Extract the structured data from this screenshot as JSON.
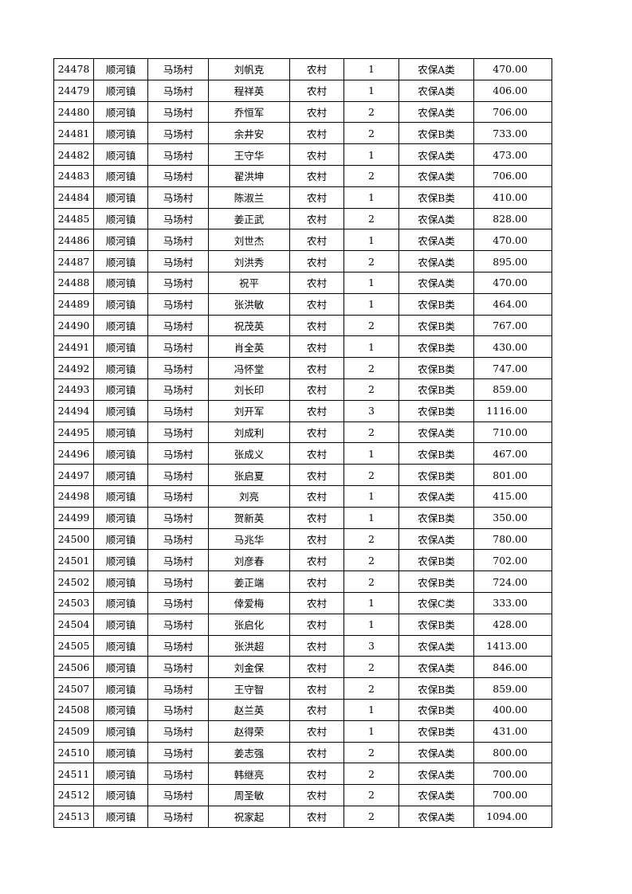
{
  "columns": [
    "id",
    "town",
    "village",
    "name",
    "area",
    "persons",
    "category",
    "amount"
  ],
  "rows": [
    [
      "24478",
      "顺河镇",
      "马场村",
      "刘帆克",
      "农村",
      "1",
      "农保A类",
      "470.00"
    ],
    [
      "24479",
      "顺河镇",
      "马场村",
      "程祥英",
      "农村",
      "1",
      "农保A类",
      "406.00"
    ],
    [
      "24480",
      "顺河镇",
      "马场村",
      "乔恒军",
      "农村",
      "2",
      "农保A类",
      "706.00"
    ],
    [
      "24481",
      "顺河镇",
      "马场村",
      "余井安",
      "农村",
      "2",
      "农保B类",
      "733.00"
    ],
    [
      "24482",
      "顺河镇",
      "马场村",
      "王守华",
      "农村",
      "1",
      "农保A类",
      "473.00"
    ],
    [
      "24483",
      "顺河镇",
      "马场村",
      "翟洪坤",
      "农村",
      "2",
      "农保A类",
      "706.00"
    ],
    [
      "24484",
      "顺河镇",
      "马场村",
      "陈淑兰",
      "农村",
      "1",
      "农保B类",
      "410.00"
    ],
    [
      "24485",
      "顺河镇",
      "马场村",
      "姜正武",
      "农村",
      "2",
      "农保A类",
      "828.00"
    ],
    [
      "24486",
      "顺河镇",
      "马场村",
      "刘世杰",
      "农村",
      "1",
      "农保A类",
      "470.00"
    ],
    [
      "24487",
      "顺河镇",
      "马场村",
      "刘洪秀",
      "农村",
      "2",
      "农保A类",
      "895.00"
    ],
    [
      "24488",
      "顺河镇",
      "马场村",
      "祝平",
      "农村",
      "1",
      "农保A类",
      "470.00"
    ],
    [
      "24489",
      "顺河镇",
      "马场村",
      "张洪敏",
      "农村",
      "1",
      "农保B类",
      "464.00"
    ],
    [
      "24490",
      "顺河镇",
      "马场村",
      "祝茂英",
      "农村",
      "2",
      "农保B类",
      "767.00"
    ],
    [
      "24491",
      "顺河镇",
      "马场村",
      "肖全英",
      "农村",
      "1",
      "农保B类",
      "430.00"
    ],
    [
      "24492",
      "顺河镇",
      "马场村",
      "冯怀堂",
      "农村",
      "2",
      "农保B类",
      "747.00"
    ],
    [
      "24493",
      "顺河镇",
      "马场村",
      "刘长印",
      "农村",
      "2",
      "农保B类",
      "859.00"
    ],
    [
      "24494",
      "顺河镇",
      "马场村",
      "刘开军",
      "农村",
      "3",
      "农保B类",
      "1116.00"
    ],
    [
      "24495",
      "顺河镇",
      "马场村",
      "刘成利",
      "农村",
      "2",
      "农保A类",
      "710.00"
    ],
    [
      "24496",
      "顺河镇",
      "马场村",
      "张成义",
      "农村",
      "1",
      "农保B类",
      "467.00"
    ],
    [
      "24497",
      "顺河镇",
      "马场村",
      "张启夏",
      "农村",
      "2",
      "农保B类",
      "801.00"
    ],
    [
      "24498",
      "顺河镇",
      "马场村",
      "刘亮",
      "农村",
      "1",
      "农保A类",
      "415.00"
    ],
    [
      "24499",
      "顺河镇",
      "马场村",
      "贺新英",
      "农村",
      "1",
      "农保B类",
      "350.00"
    ],
    [
      "24500",
      "顺河镇",
      "马场村",
      "马兆华",
      "农村",
      "2",
      "农保A类",
      "780.00"
    ],
    [
      "24501",
      "顺河镇",
      "马场村",
      "刘彦春",
      "农村",
      "2",
      "农保B类",
      "702.00"
    ],
    [
      "24502",
      "顺河镇",
      "马场村",
      "姜正端",
      "农村",
      "2",
      "农保B类",
      "724.00"
    ],
    [
      "24503",
      "顺河镇",
      "马场村",
      "倖爱梅",
      "农村",
      "1",
      "农保C类",
      "333.00"
    ],
    [
      "24504",
      "顺河镇",
      "马场村",
      "张启化",
      "农村",
      "1",
      "农保B类",
      "428.00"
    ],
    [
      "24505",
      "顺河镇",
      "马场村",
      "张洪超",
      "农村",
      "3",
      "农保A类",
      "1413.00"
    ],
    [
      "24506",
      "顺河镇",
      "马场村",
      "刘金保",
      "农村",
      "2",
      "农保A类",
      "846.00"
    ],
    [
      "24507",
      "顺河镇",
      "马场村",
      "王守智",
      "农村",
      "2",
      "农保B类",
      "859.00"
    ],
    [
      "24508",
      "顺河镇",
      "马场村",
      "赵兰英",
      "农村",
      "1",
      "农保B类",
      "400.00"
    ],
    [
      "24509",
      "顺河镇",
      "马场村",
      "赵得荣",
      "农村",
      "1",
      "农保B类",
      "431.00"
    ],
    [
      "24510",
      "顺河镇",
      "马场村",
      "姜志强",
      "农村",
      "2",
      "农保A类",
      "800.00"
    ],
    [
      "24511",
      "顺河镇",
      "马场村",
      "韩继亮",
      "农村",
      "2",
      "农保A类",
      "700.00"
    ],
    [
      "24512",
      "顺河镇",
      "马场村",
      "周圣敏",
      "农村",
      "2",
      "农保A类",
      "700.00"
    ],
    [
      "24513",
      "顺河镇",
      "马场村",
      "祝家起",
      "农村",
      "2",
      "农保A类",
      "1094.00"
    ]
  ]
}
